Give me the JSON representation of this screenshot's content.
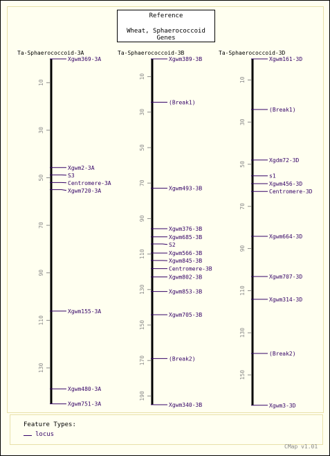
{
  "reference": {
    "title": "Reference",
    "subtitle": "Wheat, Sphaerococcoid Genes"
  },
  "maps": [
    {
      "name": "Ta-Sphaerococcoid-3A",
      "ticks": [
        10,
        30,
        50,
        70,
        90,
        110,
        130
      ],
      "features": [
        {
          "name": "Xgwm369-3A",
          "pos": 0
        },
        {
          "name": "Xgwm2-3A",
          "pos": 45.7
        },
        {
          "name": "S3",
          "pos": 48.8
        },
        {
          "name": "Centromere-3A",
          "pos": 52
        },
        {
          "name": "Xgwm720-3A",
          "pos": 55
        },
        {
          "name": "Xgwm155-3A",
          "pos": 106.1
        },
        {
          "name": "Xgwm480-3A",
          "pos": 138.8
        },
        {
          "name": "Xgwm751-3A",
          "pos": 145.1
        }
      ]
    },
    {
      "name": "Ta-Sphaerococcoid-3B",
      "ticks": [
        10,
        30,
        50,
        70,
        90,
        110,
        130,
        150,
        170,
        190
      ],
      "features": [
        {
          "name": "Xgwm389-3B",
          "pos": 0
        },
        {
          "name": "(Break1)",
          "pos": 24.4
        },
        {
          "name": "Xgwm493-3B",
          "pos": 72.9
        },
        {
          "name": "Xgwm376-3B",
          "pos": 95.7
        },
        {
          "name": "Xgwm685-3B",
          "pos": 100.3
        },
        {
          "name": "S2",
          "pos": 104.3
        },
        {
          "name": "Xgwm566-3B",
          "pos": 109.4
        },
        {
          "name": "Xgwm845-3B",
          "pos": 113.6
        },
        {
          "name": "Centromere-3B",
          "pos": 118.2
        },
        {
          "name": "Xgwm802-3B",
          "pos": 122.9
        },
        {
          "name": "Xgwm853-3B",
          "pos": 131.1
        },
        {
          "name": "Xgwm705-3B",
          "pos": 144.2
        },
        {
          "name": "(Break2)",
          "pos": 168.9
        },
        {
          "name": "Xgwm340-3B",
          "pos": 194.9
        }
      ]
    },
    {
      "name": "Ta-Sphaerococcoid-3D",
      "ticks": [
        10,
        30,
        50,
        70,
        90,
        110,
        130,
        150
      ],
      "features": [
        {
          "name": "Xgwm161-3D",
          "pos": 0
        },
        {
          "name": "(Break1)",
          "pos": 24
        },
        {
          "name": "Xgdm72-3D",
          "pos": 48
        },
        {
          "name": "s1",
          "pos": 55.5
        },
        {
          "name": "Xgwm456-3D",
          "pos": 59.2
        },
        {
          "name": "Centromere-3D",
          "pos": 62.9
        },
        {
          "name": "Xgwm664-3D",
          "pos": 84.2
        },
        {
          "name": "Xgwm707-3D",
          "pos": 103.3
        },
        {
          "name": "Xgwm314-3D",
          "pos": 114.1
        },
        {
          "name": "(Break2)",
          "pos": 139.8
        },
        {
          "name": "Xgwm3-3D",
          "pos": 164.4
        }
      ]
    }
  ],
  "legend": {
    "title": "Feature Types:",
    "item": "locus"
  },
  "version": "CMap v1.01",
  "colors": {
    "feature": "#330066",
    "axis": "#000000",
    "tick": "#888888",
    "frame": "#e8e0a8",
    "background": "#fffff0"
  }
}
